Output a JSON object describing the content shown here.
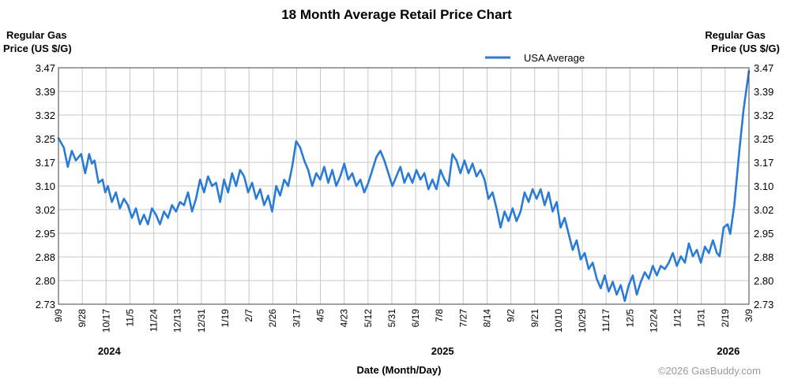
{
  "chart_data": {
    "type": "line",
    "title": "18 Month Average Retail Price Chart",
    "ylabel_left": [
      "Regular Gas",
      "Price (US $/G)"
    ],
    "ylabel_right": [
      "Regular Gas",
      "Price (US $/G)"
    ],
    "xlabel": "Date (Month/Day)",
    "ylim": [
      2.73,
      3.47
    ],
    "y_ticks": [
      "3.47",
      "3.39",
      "3.32",
      "3.25",
      "3.17",
      "3.10",
      "3.02",
      "2.95",
      "2.88",
      "2.80",
      "2.73"
    ],
    "x_ticks": [
      "9/9",
      "9/28",
      "10/17",
      "11/5",
      "11/24",
      "12/13",
      "12/31",
      "1/19",
      "2/7",
      "2/26",
      "3/17",
      "4/5",
      "4/23",
      "5/12",
      "5/31",
      "6/19",
      "7/8",
      "7/27",
      "8/14",
      "9/2",
      "9/21",
      "10/10",
      "10/29",
      "11/17",
      "12/5",
      "12/24",
      "1/12",
      "1/31",
      "2/19",
      "3/9"
    ],
    "years": [
      {
        "label": "2024",
        "at_tick": 2
      },
      {
        "label": "2025",
        "at_tick": 16
      },
      {
        "label": "2026",
        "at_tick": 28
      }
    ],
    "legend": "top-center",
    "grid": true,
    "series": [
      {
        "name": "USA Average",
        "color": "#2a7bd6",
        "points": [
          [
            0.0,
            3.25
          ],
          [
            0.4,
            3.22
          ],
          [
            0.7,
            3.16
          ],
          [
            1.0,
            3.21
          ],
          [
            1.3,
            3.18
          ],
          [
            1.5,
            3.19
          ],
          [
            1.7,
            3.2
          ],
          [
            2.0,
            3.14
          ],
          [
            2.3,
            3.2
          ],
          [
            2.5,
            3.17
          ],
          [
            2.7,
            3.18
          ],
          [
            3.0,
            3.11
          ],
          [
            3.3,
            3.12
          ],
          [
            3.5,
            3.08
          ],
          [
            3.7,
            3.1
          ],
          [
            4.0,
            3.05
          ],
          [
            4.3,
            3.08
          ],
          [
            4.6,
            3.03
          ],
          [
            4.9,
            3.06
          ],
          [
            5.2,
            3.04
          ],
          [
            5.5,
            3.0
          ],
          [
            5.8,
            3.03
          ],
          [
            6.1,
            2.98
          ],
          [
            6.4,
            3.01
          ],
          [
            6.7,
            2.98
          ],
          [
            7.0,
            3.03
          ],
          [
            7.3,
            3.01
          ],
          [
            7.6,
            2.98
          ],
          [
            7.9,
            3.02
          ],
          [
            8.2,
            3.0
          ],
          [
            8.5,
            3.04
          ],
          [
            8.8,
            3.02
          ],
          [
            9.1,
            3.05
          ],
          [
            9.4,
            3.04
          ],
          [
            9.7,
            3.08
          ],
          [
            10.0,
            3.02
          ],
          [
            10.3,
            3.06
          ],
          [
            10.6,
            3.12
          ],
          [
            10.9,
            3.08
          ],
          [
            11.2,
            3.13
          ],
          [
            11.5,
            3.1
          ],
          [
            11.8,
            3.11
          ],
          [
            12.1,
            3.05
          ],
          [
            12.4,
            3.12
          ],
          [
            12.7,
            3.08
          ],
          [
            13.0,
            3.14
          ],
          [
            13.3,
            3.1
          ],
          [
            13.6,
            3.15
          ],
          [
            13.9,
            3.13
          ],
          [
            14.2,
            3.08
          ],
          [
            14.5,
            3.11
          ],
          [
            14.8,
            3.06
          ],
          [
            15.1,
            3.09
          ],
          [
            15.4,
            3.04
          ],
          [
            15.7,
            3.07
          ],
          [
            16.0,
            3.02
          ],
          [
            16.3,
            3.1
          ],
          [
            16.6,
            3.07
          ],
          [
            16.9,
            3.12
          ],
          [
            17.2,
            3.1
          ],
          [
            17.5,
            3.16
          ],
          [
            17.8,
            3.24
          ],
          [
            18.1,
            3.22
          ],
          [
            18.4,
            3.18
          ],
          [
            18.7,
            3.15
          ],
          [
            19.0,
            3.1
          ],
          [
            19.3,
            3.14
          ],
          [
            19.6,
            3.12
          ],
          [
            19.9,
            3.16
          ],
          [
            20.2,
            3.11
          ],
          [
            20.5,
            3.15
          ],
          [
            20.8,
            3.1
          ],
          [
            21.1,
            3.13
          ],
          [
            21.4,
            3.17
          ],
          [
            21.7,
            3.12
          ],
          [
            22.0,
            3.14
          ],
          [
            22.3,
            3.1
          ],
          [
            22.6,
            3.12
          ],
          [
            22.9,
            3.08
          ],
          [
            23.2,
            3.11
          ],
          [
            23.5,
            3.15
          ],
          [
            23.8,
            3.19
          ],
          [
            24.1,
            3.21
          ],
          [
            24.4,
            3.18
          ],
          [
            24.7,
            3.14
          ],
          [
            25.0,
            3.1
          ],
          [
            25.3,
            3.13
          ],
          [
            25.6,
            3.16
          ],
          [
            25.9,
            3.11
          ],
          [
            26.2,
            3.14
          ],
          [
            26.5,
            3.11
          ],
          [
            26.8,
            3.15
          ],
          [
            27.1,
            3.12
          ],
          [
            27.4,
            3.14
          ],
          [
            27.7,
            3.09
          ],
          [
            28.0,
            3.12
          ],
          [
            28.3,
            3.09
          ],
          [
            28.6,
            3.15
          ],
          [
            28.9,
            3.12
          ],
          [
            29.2,
            3.1
          ],
          [
            29.5,
            3.2
          ],
          [
            29.8,
            3.18
          ],
          [
            30.1,
            3.14
          ],
          [
            30.4,
            3.18
          ],
          [
            30.7,
            3.14
          ],
          [
            31.0,
            3.17
          ],
          [
            31.3,
            3.13
          ],
          [
            31.6,
            3.15
          ],
          [
            31.9,
            3.12
          ],
          [
            32.2,
            3.06
          ],
          [
            32.5,
            3.08
          ],
          [
            32.8,
            3.03
          ],
          [
            33.1,
            2.97
          ],
          [
            33.4,
            3.02
          ],
          [
            33.7,
            2.99
          ],
          [
            34.0,
            3.03
          ],
          [
            34.3,
            2.99
          ],
          [
            34.6,
            3.02
          ],
          [
            34.9,
            3.08
          ],
          [
            35.2,
            3.05
          ],
          [
            35.5,
            3.09
          ],
          [
            35.8,
            3.06
          ],
          [
            36.1,
            3.09
          ],
          [
            36.4,
            3.04
          ],
          [
            36.7,
            3.08
          ],
          [
            37.0,
            3.02
          ],
          [
            37.3,
            3.05
          ],
          [
            37.6,
            2.97
          ],
          [
            37.9,
            3.0
          ],
          [
            38.2,
            2.95
          ],
          [
            38.5,
            2.9
          ],
          [
            38.8,
            2.93
          ],
          [
            39.1,
            2.87
          ],
          [
            39.4,
            2.89
          ],
          [
            39.7,
            2.84
          ],
          [
            40.0,
            2.86
          ],
          [
            40.3,
            2.81
          ],
          [
            40.6,
            2.78
          ],
          [
            40.9,
            2.82
          ],
          [
            41.2,
            2.77
          ],
          [
            41.5,
            2.8
          ],
          [
            41.8,
            2.76
          ],
          [
            42.1,
            2.79
          ],
          [
            42.4,
            2.74
          ],
          [
            42.7,
            2.79
          ],
          [
            43.0,
            2.82
          ],
          [
            43.3,
            2.76
          ],
          [
            43.6,
            2.8
          ],
          [
            43.9,
            2.83
          ],
          [
            44.2,
            2.81
          ],
          [
            44.5,
            2.85
          ],
          [
            44.8,
            2.82
          ],
          [
            45.1,
            2.85
          ],
          [
            45.4,
            2.84
          ],
          [
            45.7,
            2.86
          ],
          [
            46.0,
            2.89
          ],
          [
            46.3,
            2.85
          ],
          [
            46.6,
            2.88
          ],
          [
            46.9,
            2.86
          ],
          [
            47.2,
            2.92
          ],
          [
            47.5,
            2.88
          ],
          [
            47.8,
            2.9
          ],
          [
            48.1,
            2.86
          ],
          [
            48.4,
            2.91
          ],
          [
            48.7,
            2.89
          ],
          [
            49.0,
            2.93
          ],
          [
            49.3,
            2.89
          ],
          [
            49.5,
            2.88
          ],
          [
            49.8,
            2.97
          ],
          [
            50.1,
            2.98
          ],
          [
            50.3,
            2.95
          ],
          [
            50.6,
            3.04
          ],
          [
            51.0,
            3.22
          ],
          [
            51.3,
            3.34
          ],
          [
            51.7,
            3.46
          ]
        ]
      }
    ]
  },
  "copyright": "©2026 GasBuddy.com"
}
